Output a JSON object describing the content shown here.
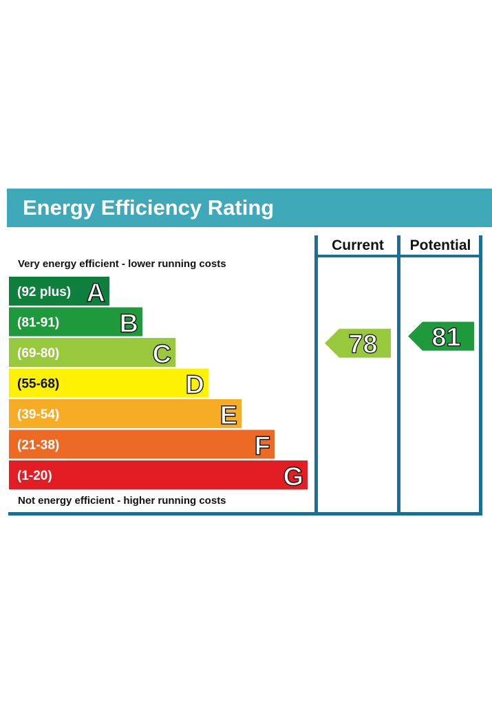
{
  "header": {
    "title": "Energy Efficiency Rating",
    "color": "#3fa9b9"
  },
  "columns": {
    "current_label": "Current",
    "potential_label": "Potential"
  },
  "top_caption": "Very energy efficient - lower running costs",
  "bottom_caption": "Not energy efficient - higher running costs",
  "frame_color": "#1a6f94",
  "chart_data": {
    "type": "bar",
    "categories": [
      "A",
      "B",
      "C",
      "D",
      "E",
      "F",
      "G"
    ],
    "bands": [
      {
        "letter": "A",
        "range": "(92 plus)",
        "min": 92,
        "max": null,
        "color": "#0e7f3c"
      },
      {
        "letter": "B",
        "range": "(81-91)",
        "min": 81,
        "max": 91,
        "color": "#1e9a3c"
      },
      {
        "letter": "C",
        "range": "(69-80)",
        "min": 69,
        "max": 80,
        "color": "#98c93c"
      },
      {
        "letter": "D",
        "range": "(55-68)",
        "min": 55,
        "max": 68,
        "color": "#fff200"
      },
      {
        "letter": "E",
        "range": "(39-54)",
        "min": 39,
        "max": 54,
        "color": "#f6ad25"
      },
      {
        "letter": "F",
        "range": "(21-38)",
        "min": 21,
        "max": 38,
        "color": "#ec6a24"
      },
      {
        "letter": "G",
        "range": "(1-20)",
        "min": 1,
        "max": 20,
        "color": "#e31d24"
      }
    ],
    "current": {
      "value": 78,
      "band": "C",
      "color": "#98c93c"
    },
    "potential": {
      "value": 81,
      "band": "B",
      "color": "#1e9a3c"
    }
  }
}
